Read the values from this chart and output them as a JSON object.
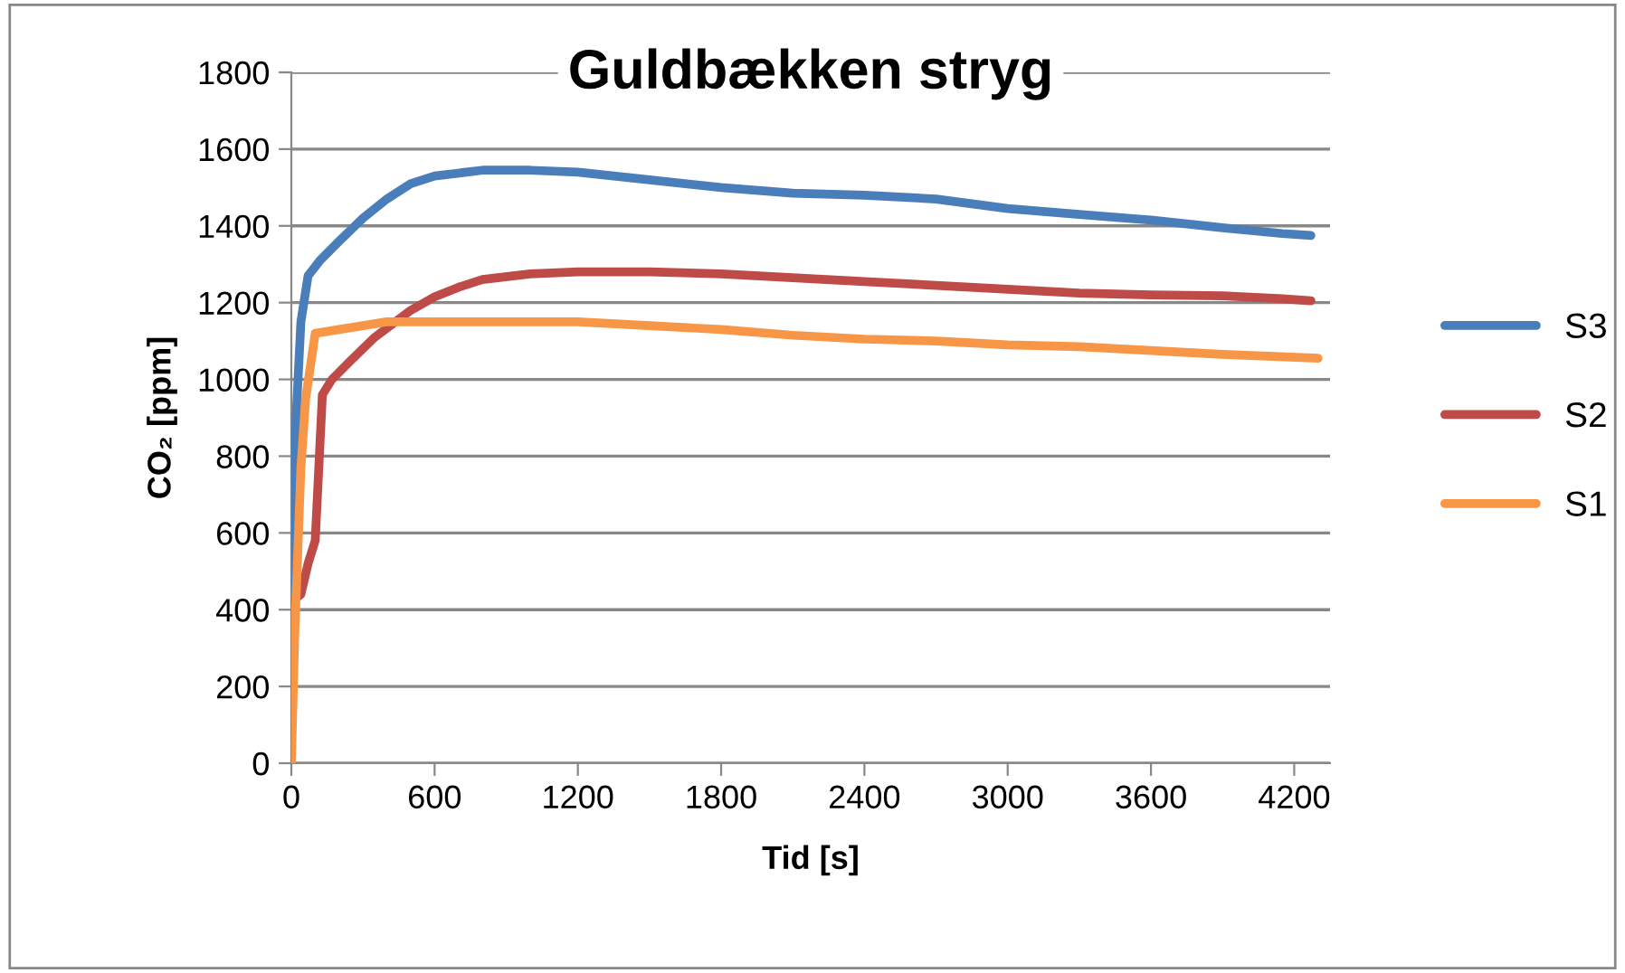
{
  "chart_data": {
    "type": "line",
    "title": "Guldbækken stryg",
    "xlabel": "Tid [s]",
    "ylabel": "CO₂ [ppm]",
    "xlim": [
      0,
      4350
    ],
    "xticks": [
      0,
      600,
      1200,
      1800,
      2400,
      3000,
      3600,
      4200
    ],
    "ylim": [
      0,
      1800
    ],
    "yticks": [
      0,
      200,
      400,
      600,
      800,
      1000,
      1200,
      1400,
      1600,
      1800
    ],
    "grid": "y",
    "legend": "right",
    "marker": "none",
    "line_style": "solid",
    "series": [
      {
        "name": "S3",
        "color": "#4a7ebb",
        "x": [
          0,
          20,
          40,
          70,
          120,
          200,
          300,
          400,
          500,
          600,
          800,
          1000,
          1200,
          1500,
          1800,
          2100,
          2400,
          2700,
          3000,
          3300,
          3600,
          3900,
          4150,
          4270
        ],
        "values": [
          420,
          900,
          1150,
          1270,
          1310,
          1360,
          1420,
          1470,
          1510,
          1530,
          1545,
          1545,
          1540,
          1520,
          1500,
          1485,
          1480,
          1470,
          1445,
          1430,
          1415,
          1395,
          1380,
          1375
        ]
      },
      {
        "name": "S2",
        "color": "#be4b48",
        "x": [
          0,
          40,
          70,
          100,
          130,
          170,
          250,
          350,
          500,
          600,
          700,
          800,
          1000,
          1200,
          1500,
          1800,
          2100,
          2400,
          2700,
          3000,
          3300,
          3600,
          3900,
          4150,
          4270
        ],
        "values": [
          420,
          440,
          520,
          580,
          960,
          1000,
          1050,
          1110,
          1180,
          1215,
          1240,
          1260,
          1275,
          1280,
          1280,
          1275,
          1265,
          1255,
          1245,
          1235,
          1225,
          1220,
          1218,
          1210,
          1205
        ]
      },
      {
        "name": "S1",
        "color": "#f79646",
        "x": [
          0,
          15,
          40,
          60,
          100,
          200,
          300,
          400,
          800,
          1200,
          1500,
          1800,
          2100,
          2400,
          2700,
          3000,
          3300,
          3600,
          3900,
          4300
        ],
        "values": [
          0,
          350,
          770,
          950,
          1120,
          1130,
          1140,
          1150,
          1150,
          1150,
          1140,
          1130,
          1115,
          1105,
          1100,
          1090,
          1085,
          1075,
          1065,
          1055
        ]
      }
    ]
  }
}
